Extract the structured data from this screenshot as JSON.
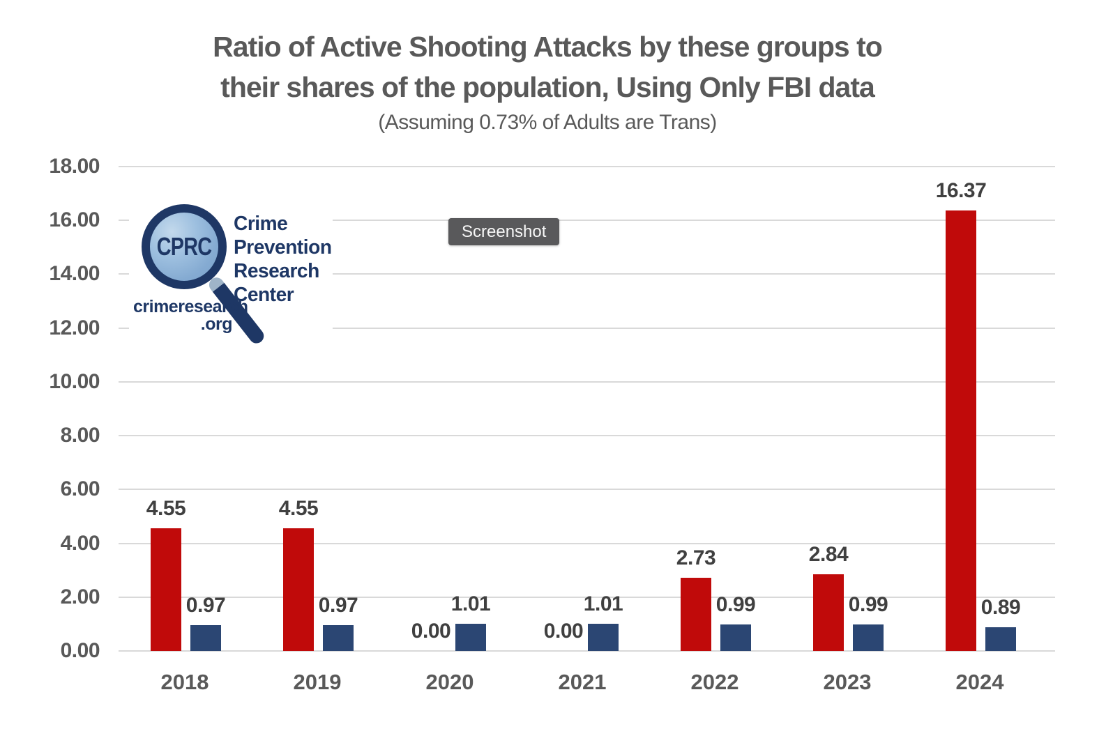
{
  "header": {
    "title_line1": "Ratio of Active Shooting Attacks by these groups to",
    "title_line2": "their shares of the population, Using Only FBI data",
    "subtitle": "(Assuming 0.73% of Adults are Trans)"
  },
  "overlay": {
    "screenshot_badge": "Screenshot"
  },
  "logo": {
    "icon": "magnifying-glass-icon",
    "acronym": "CPRC",
    "org_lines": [
      "Crime",
      "Prevention",
      "Research",
      "Center"
    ],
    "site_lines": [
      "crimeresearch",
      ".org"
    ]
  },
  "colors": {
    "red_bar": "#c00a0a",
    "blue_bar": "#2b4673",
    "title_text": "#595959",
    "value_label_text": "#404040",
    "gridline": "#d9d9d9",
    "badge_bg": "#59595b",
    "logo_navy": "#1e3765",
    "logo_glass": "#85abd2"
  },
  "chart_data": {
    "type": "bar",
    "title": "Ratio of Active Shooting Attacks by these groups to their shares of the population, Using Only FBI data",
    "subtitle": "(Assuming 0.73% of Adults are Trans)",
    "categories": [
      "2018",
      "2019",
      "2020",
      "2021",
      "2022",
      "2023",
      "2024"
    ],
    "series": [
      {
        "name": "red",
        "color": "#c00a0a",
        "values": [
          4.55,
          4.55,
          0.0,
          0.0,
          2.73,
          2.84,
          16.37
        ],
        "labels": [
          "4.55",
          "4.55",
          "0.00",
          "0.00",
          "2.73",
          "2.84",
          "16.37"
        ]
      },
      {
        "name": "blue",
        "color": "#2b4673",
        "values": [
          0.97,
          0.97,
          1.01,
          1.01,
          0.99,
          0.99,
          0.89
        ],
        "labels": [
          "0.97",
          "0.97",
          "1.01",
          "1.01",
          "0.99",
          "0.99",
          "0.89"
        ]
      }
    ],
    "ylim": [
      0,
      18
    ],
    "ytick_step": 2,
    "yticks": [
      {
        "value": 18,
        "label": "18.00"
      },
      {
        "value": 16,
        "label": "16.00"
      },
      {
        "value": 14,
        "label": "14.00"
      },
      {
        "value": 12,
        "label": "12.00"
      },
      {
        "value": 10,
        "label": "10.00"
      },
      {
        "value": 8,
        "label": "8.00"
      },
      {
        "value": 6,
        "label": "6.00"
      },
      {
        "value": 4,
        "label": "4.00"
      },
      {
        "value": 2,
        "label": "2.00"
      },
      {
        "value": 0,
        "label": "0.00"
      }
    ],
    "grid": true,
    "legend": "none",
    "value_labels": true
  }
}
